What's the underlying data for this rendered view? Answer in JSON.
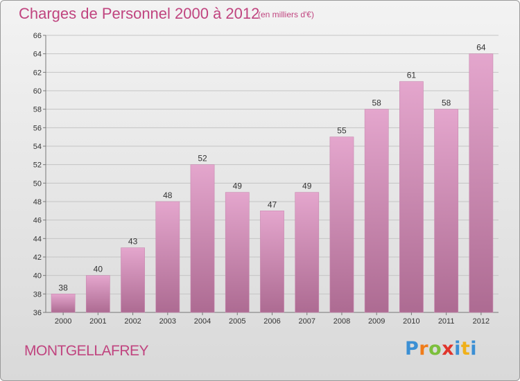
{
  "header": {
    "title": "Charges de Personnel 2000 à 2012",
    "subtitle": "(en milliers d'€)"
  },
  "footer": {
    "commune": "MONTGELLAFREY",
    "brand_letters": [
      "P",
      "r",
      "o",
      "x",
      "i",
      "t",
      "i"
    ],
    "brand_colors": [
      "#3b8fd4",
      "#f07c1a",
      "#7cbf3c",
      "#e0342b",
      "#3b8fd4",
      "#f0b01a",
      "#3b8fd4"
    ]
  },
  "colors": {
    "title": "#c0447f",
    "bar_top": "#e4a6cd",
    "bar_bottom": "#ad6b92",
    "grid": "#c4c4c4"
  },
  "chart_data": {
    "type": "bar",
    "categories": [
      "2000",
      "2001",
      "2002",
      "2003",
      "2004",
      "2005",
      "2006",
      "2007",
      "2008",
      "2009",
      "2010",
      "2011",
      "2012"
    ],
    "values": [
      38,
      40,
      43,
      48,
      52,
      49,
      47,
      49,
      55,
      58,
      61,
      58,
      64
    ],
    "ylim": [
      36,
      66
    ],
    "yticks": [
      36,
      38,
      40,
      42,
      44,
      46,
      48,
      50,
      52,
      54,
      56,
      58,
      60,
      62,
      64,
      66
    ],
    "grid": true
  }
}
